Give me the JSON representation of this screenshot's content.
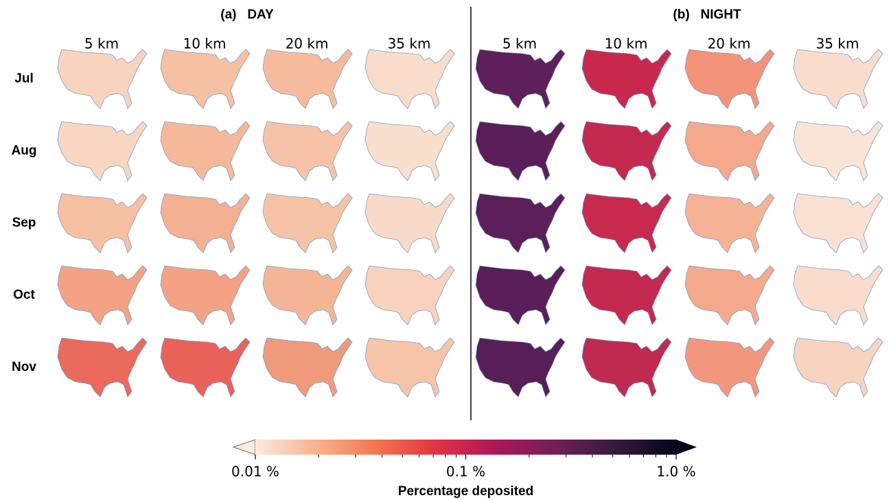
{
  "panels": [
    {
      "title": "(a)   DAY",
      "columns": [
        "5 km",
        "10 km",
        "20 km",
        "35 km"
      ],
      "fills": [
        [
          "#f8d3bd",
          "#f6c0a2",
          "#f6bb9d",
          "#f9dcca"
        ],
        [
          "#f8d6c2",
          "#f5b99a",
          "#f6c3a8",
          "#f9dfce"
        ],
        [
          "#f6c0a3",
          "#f4b092",
          "#f6c3a6",
          "#f9dac8"
        ],
        [
          "#f3a283",
          "#f3a283",
          "#f4b596",
          "#f8d2bc"
        ],
        [
          "#ea6a5c",
          "#e9625a",
          "#f09a7c",
          "#f6c4a8"
        ]
      ]
    },
    {
      "title": "(b)   NIGHT",
      "columns": [
        "5 km",
        "10 km",
        "20 km",
        "35 km"
      ],
      "fills": [
        [
          "#5e1f5a",
          "#c9284d",
          "#f2937a",
          "#f9dccc"
        ],
        [
          "#5a1e58",
          "#c42a4f",
          "#f4a88c",
          "#fae4d6"
        ],
        [
          "#5c1f5a",
          "#c82a4e",
          "#f5b295",
          "#fae1d2"
        ],
        [
          "#5a1e58",
          "#c4294f",
          "#f4a98d",
          "#f9dccc"
        ],
        [
          "#581e57",
          "#c02a50",
          "#f2977d",
          "#f8d3bf"
        ]
      ]
    }
  ],
  "months": [
    "Jul",
    "Aug",
    "Sep",
    "Oct",
    "Nov"
  ],
  "colorbar": {
    "label": "Percentage deposited",
    "scale": "log",
    "lim": [
      0.01,
      1.0
    ],
    "ticks": [
      {
        "value": 0.01,
        "label": "0.01 %"
      },
      {
        "value": 0.1,
        "label": "0.1 %"
      },
      {
        "value": 1.0,
        "label": "1.0 %"
      }
    ],
    "minor_ticks": [
      0.02,
      0.03,
      0.04,
      0.05,
      0.06,
      0.07,
      0.08,
      0.09,
      0.2,
      0.3,
      0.4,
      0.5,
      0.6,
      0.7,
      0.8,
      0.9
    ],
    "colors": [
      "#faebdd",
      "#f6b48e",
      "#f37651",
      "#e13342",
      "#ad1759",
      "#701f57",
      "#35193e",
      "#03051a"
    ]
  }
}
